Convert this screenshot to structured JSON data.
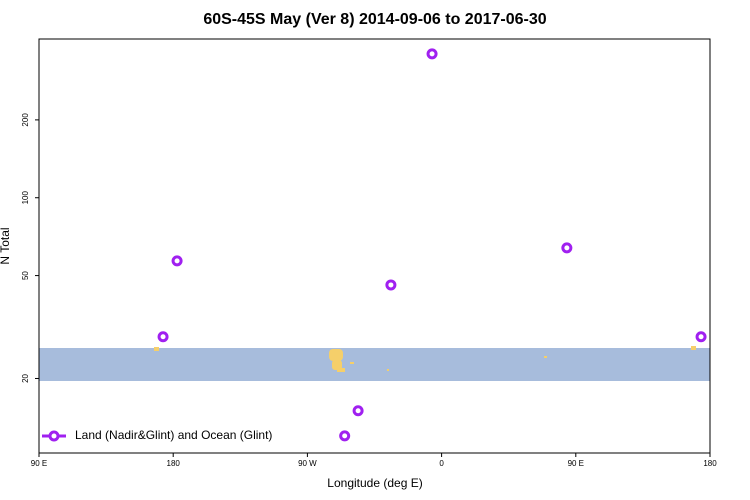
{
  "chart_data": {
    "type": "scatter",
    "title": "60S-45S May (Ver 8)   2014-09-06 to 2017-06-30",
    "x_label": "Longitude (deg E)",
    "y_label": "N Total",
    "series": [
      {
        "name": "Land (Nadir&Glint) and Ocean (Glint)",
        "color": "#a020f0",
        "x": [
          353.6,
          182.6,
          173.2,
          326,
          444,
          534,
          304,
          295
        ],
        "values": [
          360,
          57,
          29,
          46,
          64,
          29,
          15,
          12
        ]
      }
    ],
    "xlim": [
      90,
      540
    ],
    "xticks": [
      {
        "value": 90,
        "label": "90 E"
      },
      {
        "value": 180,
        "label": "180"
      },
      {
        "value": 270,
        "label": "90 W"
      },
      {
        "value": 360,
        "label": "0"
      },
      {
        "value": 450,
        "label": "90 E"
      },
      {
        "value": 540,
        "label": "180"
      }
    ],
    "ylim": [
      10.3,
      411
    ],
    "yticks": [
      20,
      50,
      100,
      200
    ],
    "y_scale": "log",
    "legend": "lower left"
  }
}
